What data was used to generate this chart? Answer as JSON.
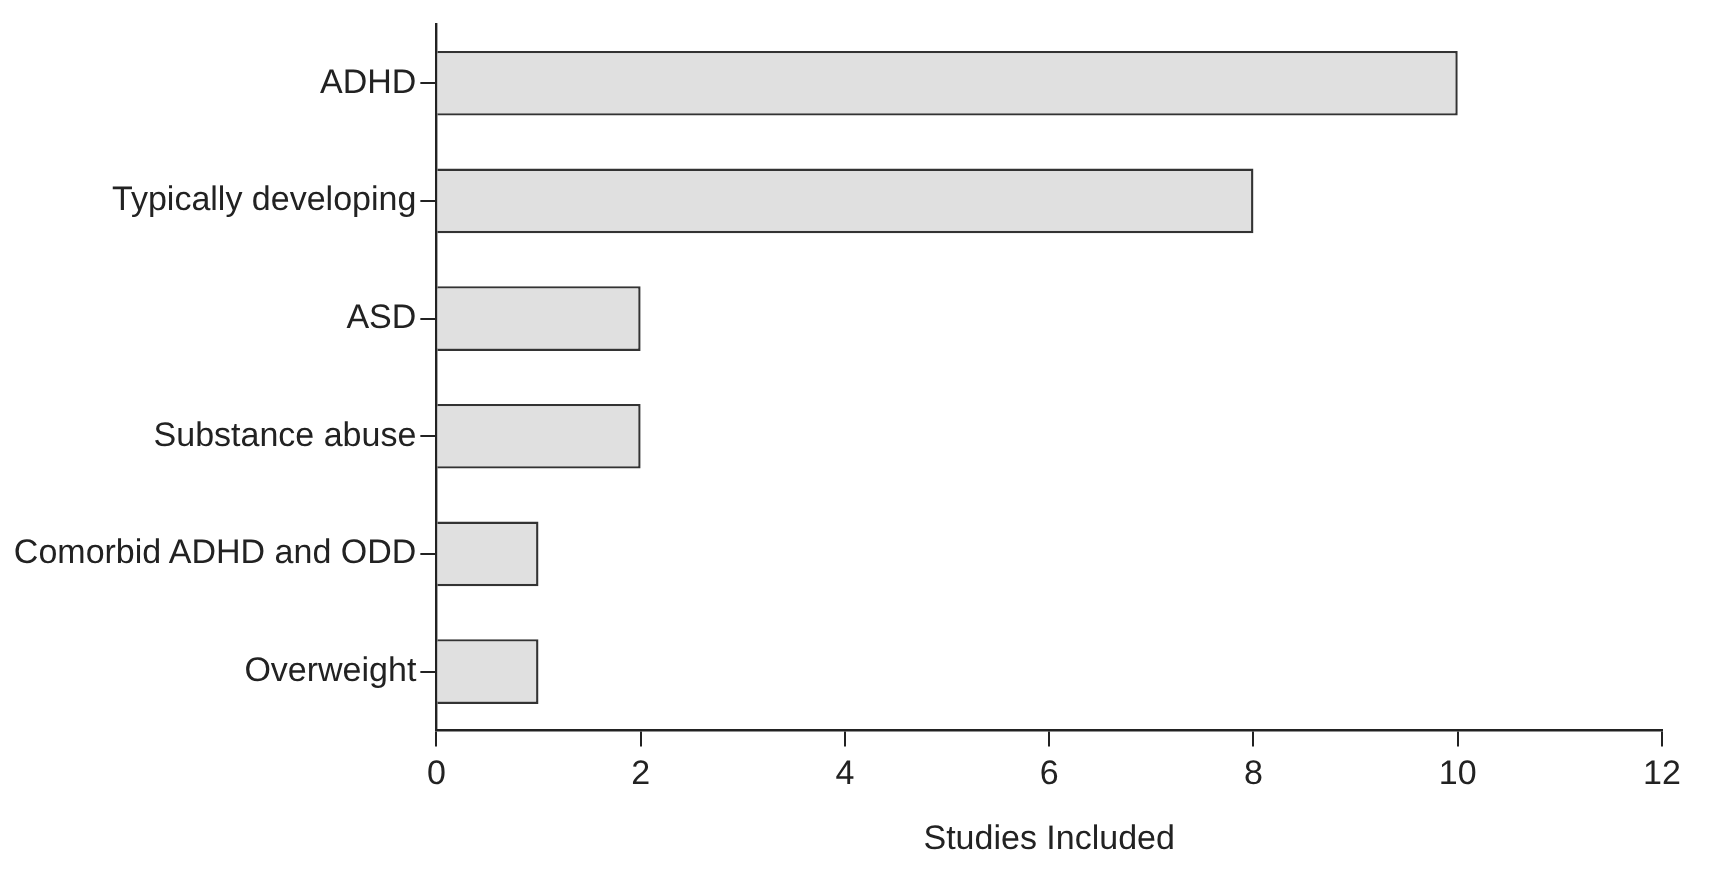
{
  "chart_data": {
    "type": "bar",
    "orientation": "horizontal",
    "xlabel": "Studies Included",
    "categories": [
      "ADHD",
      "Typically developing",
      "ASD",
      "Substance abuse",
      "Comorbid ADHD and ODD",
      "Overweight"
    ],
    "values": [
      10,
      8,
      2,
      2,
      1,
      1
    ],
    "color": "#e0e0e0",
    "xlim": [
      0,
      12
    ],
    "xticks": [
      0,
      2,
      4,
      6,
      8,
      10,
      12
    ]
  }
}
